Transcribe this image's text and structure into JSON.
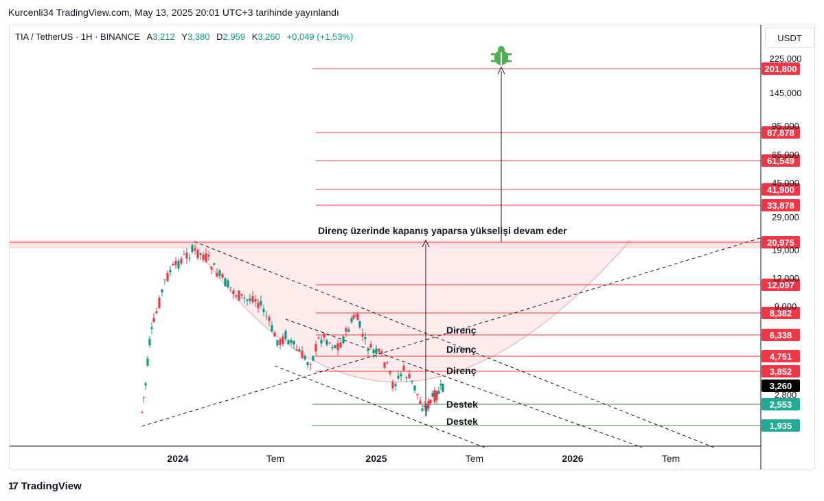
{
  "header": {
    "published": "Kurcenli34 TradingView.com, May 13, 2025 20:01 UTC+3 tarihinde yayınlandı"
  },
  "legend": {
    "symbol": "TIA / TetherUS · 1H · BINANCE",
    "open_key": "A",
    "open": "3,212",
    "high_key": "Y",
    "high": "3,380",
    "low_key": "D",
    "low": "2,959",
    "close_key": "K",
    "close": "3,260",
    "change": "+0,049 (+1,53%)"
  },
  "currency": "USDT",
  "colors": {
    "resistance": "#f23645",
    "support": "#22ab94",
    "support_line": "#388e3c",
    "current": "#000000",
    "up_candle": "#089981",
    "down_candle": "#f23645",
    "zone": "#fde4e4",
    "target_icon": "#4caf50"
  },
  "footer": {
    "brand": "TradingView"
  },
  "chart_data": {
    "type": "candlestick",
    "title": "",
    "x_tick_labels": [
      "2024",
      "Tem",
      "2025",
      "Tem",
      "2026",
      "Tem"
    ],
    "y_tick_labels": [
      "225,000",
      "145,000",
      "95,000",
      "65,000",
      "45,000",
      "29,000",
      "19,000",
      "12,000",
      "9,000",
      "2,800"
    ],
    "y_scale": "log",
    "price_levels": [
      {
        "value": "201,800",
        "kind": "resistance"
      },
      {
        "value": "87,878",
        "kind": "resistance"
      },
      {
        "value": "61,549",
        "kind": "resistance"
      },
      {
        "value": "41,900",
        "kind": "resistance"
      },
      {
        "value": "33,878",
        "kind": "resistance"
      },
      {
        "value": "20,975",
        "kind": "resistance"
      },
      {
        "value": "12,097",
        "kind": "resistance"
      },
      {
        "value": "8,382",
        "kind": "resistance"
      },
      {
        "value": "6,338",
        "kind": "resistance"
      },
      {
        "value": "4,751",
        "kind": "resistance"
      },
      {
        "value": "3,852",
        "kind": "resistance"
      },
      {
        "value": "3,260",
        "kind": "current"
      },
      {
        "value": "2,553",
        "kind": "support"
      },
      {
        "value": "1,935",
        "kind": "support"
      }
    ],
    "annotations": {
      "breakout_note": "Direnç üzerinde kapanış yaparsa yükselişi devam eder",
      "resistance_1": "Direnç",
      "resistance_2": "Direnç",
      "resistance_3": "Direnç",
      "support_1": "Destek",
      "support_2": "Destek"
    },
    "legend": "none",
    "grid": false
  }
}
